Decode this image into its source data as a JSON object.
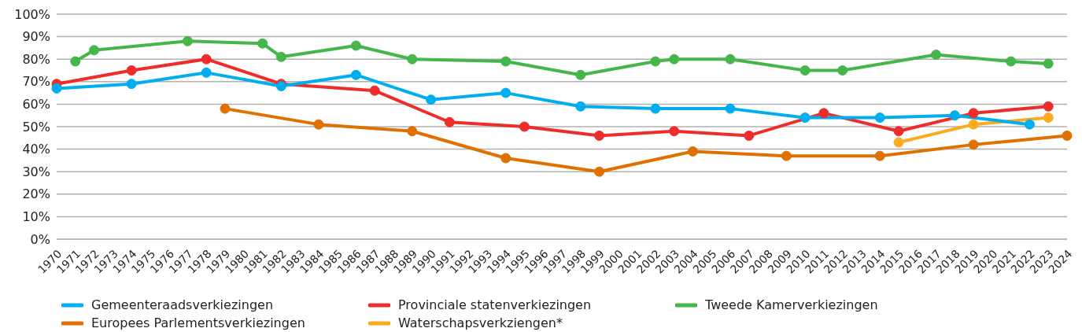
{
  "chart_data": {
    "type": "line",
    "categories": [
      "1970",
      "1971",
      "1972",
      "1973",
      "1974",
      "1975",
      "1976",
      "1977",
      "1978",
      "1979",
      "1980",
      "1981",
      "1982",
      "1983",
      "1984",
      "1985",
      "1986",
      "1987",
      "1988",
      "1989",
      "1990",
      "1991",
      "1992",
      "1993",
      "1994",
      "1995",
      "1996",
      "1997",
      "1998",
      "1999",
      "2000",
      "2001",
      "2002",
      "2003",
      "2004",
      "2005",
      "2006",
      "2007",
      "2008",
      "2009",
      "2010",
      "2011",
      "2012",
      "2013",
      "2014",
      "2015",
      "2016",
      "2017",
      "2018",
      "2019",
      "2020",
      "2021",
      "2022",
      "2023",
      "2024"
    ],
    "series": [
      {
        "name": "Gemeenteraadsverkiezingen",
        "color": "#00aeef",
        "values": [
          67,
          null,
          null,
          null,
          69,
          null,
          null,
          null,
          74,
          null,
          null,
          null,
          68,
          null,
          null,
          null,
          73,
          null,
          null,
          null,
          62,
          null,
          null,
          null,
          65,
          null,
          null,
          null,
          59,
          null,
          null,
          null,
          58,
          null,
          null,
          null,
          58,
          null,
          null,
          null,
          54,
          null,
          null,
          null,
          54,
          null,
          null,
          null,
          55,
          null,
          null,
          null,
          51,
          null,
          null
        ]
      },
      {
        "name": "Provinciale statenverkiezingen",
        "color": "#ee2d2b",
        "values": [
          69,
          null,
          null,
          null,
          75,
          null,
          null,
          null,
          80,
          null,
          null,
          null,
          69,
          null,
          null,
          null,
          null,
          66,
          null,
          null,
          null,
          52,
          null,
          null,
          null,
          50,
          null,
          null,
          null,
          46,
          null,
          null,
          null,
          48,
          null,
          null,
          null,
          46,
          null,
          null,
          null,
          56,
          null,
          null,
          null,
          48,
          null,
          null,
          null,
          56,
          null,
          null,
          null,
          59,
          null
        ]
      },
      {
        "name": "Tweede Kamerverkiezingen",
        "color": "#45b649",
        "values": [
          null,
          79,
          84,
          null,
          null,
          null,
          null,
          88,
          null,
          null,
          null,
          87,
          81,
          null,
          null,
          null,
          86,
          null,
          null,
          80,
          null,
          null,
          null,
          null,
          79,
          null,
          null,
          null,
          73,
          null,
          null,
          null,
          79,
          80,
          null,
          null,
          80,
          null,
          null,
          null,
          75,
          null,
          75,
          null,
          null,
          null,
          null,
          82,
          null,
          null,
          null,
          79,
          null,
          78,
          null
        ]
      },
      {
        "name": "Europees Parlementsverkiezingen",
        "color": "#e07000",
        "values": [
          null,
          null,
          null,
          null,
          null,
          null,
          null,
          null,
          null,
          58,
          null,
          null,
          null,
          null,
          51,
          null,
          null,
          null,
          null,
          48,
          null,
          null,
          null,
          null,
          36,
          null,
          null,
          null,
          null,
          30,
          null,
          null,
          null,
          null,
          39,
          null,
          null,
          null,
          null,
          37,
          null,
          null,
          null,
          null,
          37,
          null,
          null,
          null,
          null,
          42,
          null,
          null,
          null,
          null,
          46
        ]
      },
      {
        "name": "Waterschapsverkziengen*",
        "color": "#fbab1f",
        "values": [
          null,
          null,
          null,
          null,
          null,
          null,
          null,
          null,
          null,
          null,
          null,
          null,
          null,
          null,
          null,
          null,
          null,
          null,
          null,
          null,
          null,
          null,
          null,
          null,
          null,
          null,
          null,
          null,
          null,
          null,
          null,
          null,
          null,
          null,
          null,
          null,
          null,
          null,
          null,
          null,
          null,
          null,
          null,
          null,
          null,
          43,
          null,
          null,
          null,
          51,
          null,
          null,
          null,
          54,
          null
        ]
      }
    ],
    "ylim": [
      0,
      100
    ],
    "yticks": [
      {
        "value": 0,
        "label": "0%"
      },
      {
        "value": 10,
        "label": "10%"
      },
      {
        "value": 20,
        "label": "20%"
      },
      {
        "value": 30,
        "label": "30%"
      },
      {
        "value": 40,
        "label": "40%"
      },
      {
        "value": 50,
        "label": "50%"
      },
      {
        "value": 60,
        "label": "60%"
      },
      {
        "value": 70,
        "label": "70%"
      },
      {
        "value": 80,
        "label": "80%"
      },
      {
        "value": 90,
        "label": "90%"
      },
      {
        "value": 100,
        "label": "100%"
      }
    ],
    "grid": "y",
    "legend": "bottom",
    "marker": "circle",
    "line_style": "solid"
  }
}
